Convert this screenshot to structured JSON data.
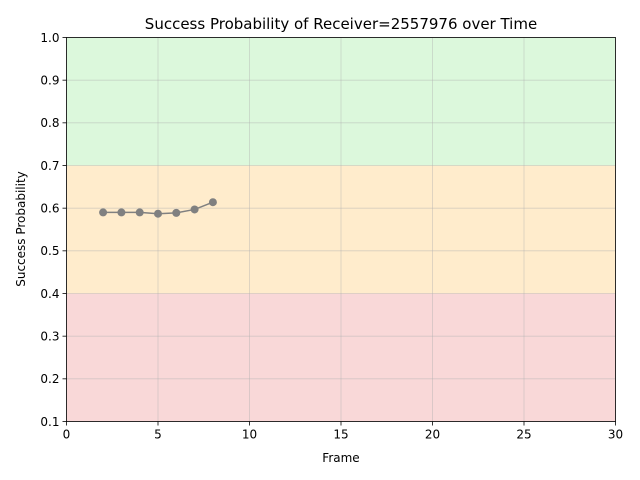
{
  "chart_data": {
    "type": "line",
    "title": "Success Probability of Receiver=2557976 over Time",
    "xlabel": "Frame",
    "ylabel": "Success Probability",
    "xlim": [
      0,
      30
    ],
    "ylim": [
      0.1,
      1.0
    ],
    "x_ticks": [
      0,
      5,
      10,
      15,
      20,
      25,
      30
    ],
    "x_tick_labels": [
      "0",
      "5",
      "10",
      "15",
      "20",
      "25",
      "30"
    ],
    "y_ticks": [
      0.1,
      0.2,
      0.3,
      0.4,
      0.5,
      0.6,
      0.7,
      0.8,
      0.9,
      1.0
    ],
    "y_tick_labels": [
      "0.1",
      "0.2",
      "0.3",
      "0.4",
      "0.5",
      "0.6",
      "0.7",
      "0.8",
      "0.9",
      "1.0"
    ],
    "grid": true,
    "bands": [
      {
        "y0": 0.1,
        "y1": 0.4,
        "color": "#f9d8d8"
      },
      {
        "y0": 0.4,
        "y1": 0.7,
        "color": "#ffeccc"
      },
      {
        "y0": 0.7,
        "y1": 1.0,
        "color": "#dcf8dc"
      }
    ],
    "series": [
      {
        "color": "#808080",
        "x": [
          2,
          3,
          4,
          5,
          6,
          7,
          8
        ],
        "y": [
          0.59,
          0.59,
          0.59,
          0.587,
          0.589,
          0.597,
          0.614
        ]
      }
    ]
  }
}
